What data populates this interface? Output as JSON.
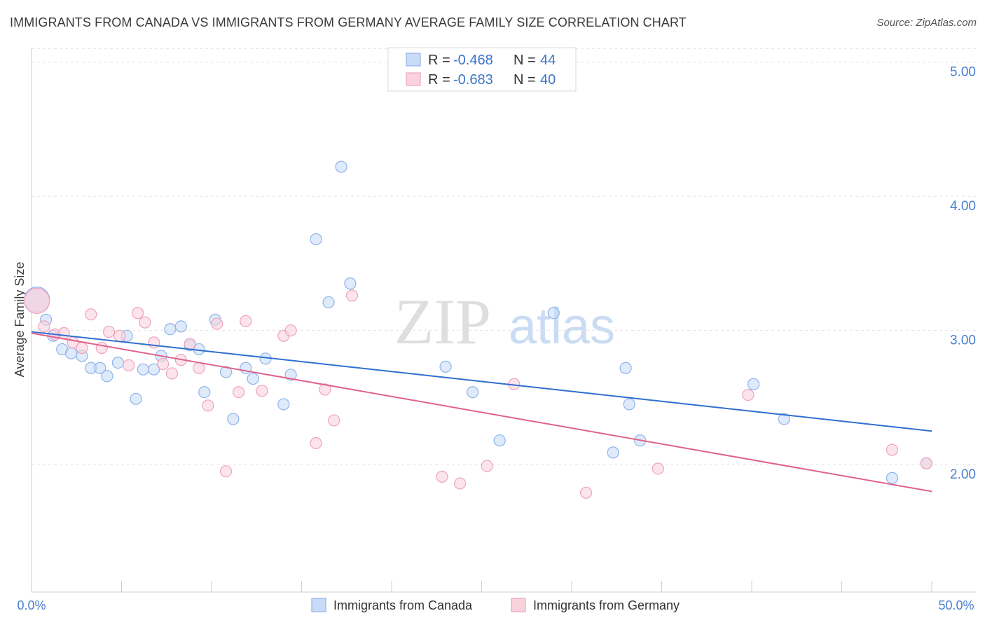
{
  "title": "IMMIGRANTS FROM CANADA VS IMMIGRANTS FROM GERMANY AVERAGE FAMILY SIZE CORRELATION CHART",
  "source": "Source: ZipAtlas.com",
  "watermark": {
    "zip": "ZIP",
    "atlas": "atlas"
  },
  "chart_data": {
    "type": "scatter",
    "title": "IMMIGRANTS FROM CANADA VS IMMIGRANTS FROM GERMANY AVERAGE FAMILY SIZE CORRELATION CHART",
    "xlabel": "",
    "ylabel": "Average Family Size",
    "xlim": [
      0,
      50
    ],
    "ylim": [
      1.05,
      5.15
    ],
    "x_tick_labels": {
      "left": "0.0%",
      "right": "50.0%"
    },
    "y_ticks": [
      {
        "value": 2.0,
        "label": "2.00"
      },
      {
        "value": 3.0,
        "label": "3.00"
      },
      {
        "value": 4.0,
        "label": "4.00"
      },
      {
        "value": 5.0,
        "label": "5.00"
      }
    ],
    "grid": true,
    "legend": [
      {
        "r_label": "R =",
        "r_value": "-0.468",
        "n_label": "N =",
        "n_value": "44"
      },
      {
        "r_label": "R =",
        "r_value": "-0.683",
        "n_label": "N =",
        "n_value": "40"
      }
    ],
    "series": [
      {
        "name": "Immigrants from Canada",
        "color": "#8fb4ea",
        "fill": "#c9dcf7",
        "line_color": "#2f6fcf",
        "trend": {
          "x0": 0,
          "y0": 2.99,
          "x1": 50,
          "y1": 2.25
        },
        "points": [
          [
            0.3,
            3.23
          ],
          [
            0.8,
            3.08
          ],
          [
            1.2,
            2.96
          ],
          [
            1.7,
            2.86
          ],
          [
            2.2,
            2.83
          ],
          [
            2.8,
            2.81
          ],
          [
            3.3,
            2.72
          ],
          [
            3.8,
            2.72
          ],
          [
            4.2,
            2.66
          ],
          [
            4.8,
            2.76
          ],
          [
            5.3,
            2.96
          ],
          [
            5.8,
            2.49
          ],
          [
            6.2,
            2.71
          ],
          [
            6.8,
            2.71
          ],
          [
            7.2,
            2.81
          ],
          [
            7.7,
            3.01
          ],
          [
            8.3,
            3.03
          ],
          [
            8.8,
            2.89
          ],
          [
            9.3,
            2.86
          ],
          [
            9.6,
            2.54
          ],
          [
            10.2,
            3.08
          ],
          [
            10.8,
            2.69
          ],
          [
            11.2,
            2.34
          ],
          [
            11.9,
            2.72
          ],
          [
            12.3,
            2.64
          ],
          [
            13.0,
            2.79
          ],
          [
            14.0,
            2.45
          ],
          [
            14.4,
            2.67
          ],
          [
            15.8,
            3.68
          ],
          [
            16.5,
            3.21
          ],
          [
            17.2,
            4.22
          ],
          [
            17.7,
            3.35
          ],
          [
            23.0,
            2.73
          ],
          [
            24.5,
            2.54
          ],
          [
            26.0,
            2.18
          ],
          [
            29.0,
            3.13
          ],
          [
            32.3,
            2.09
          ],
          [
            33.0,
            2.72
          ],
          [
            33.2,
            2.45
          ],
          [
            33.8,
            2.18
          ],
          [
            40.1,
            2.6
          ],
          [
            41.8,
            2.34
          ],
          [
            47.8,
            1.9
          ],
          [
            49.7,
            2.01
          ]
        ]
      },
      {
        "name": "Immigrants from Germany",
        "color": "#f0a3bc",
        "fill": "#f9d2de",
        "line_color": "#e0628d",
        "trend": {
          "x0": 0,
          "y0": 2.98,
          "x1": 50,
          "y1": 1.8
        },
        "points": [
          [
            0.3,
            3.22
          ],
          [
            0.7,
            3.03
          ],
          [
            1.3,
            2.97
          ],
          [
            1.8,
            2.98
          ],
          [
            2.3,
            2.91
          ],
          [
            2.8,
            2.87
          ],
          [
            3.3,
            3.12
          ],
          [
            3.9,
            2.87
          ],
          [
            4.3,
            2.99
          ],
          [
            4.9,
            2.96
          ],
          [
            5.4,
            2.74
          ],
          [
            5.9,
            3.13
          ],
          [
            6.3,
            3.06
          ],
          [
            6.8,
            2.91
          ],
          [
            7.3,
            2.75
          ],
          [
            7.8,
            2.68
          ],
          [
            8.3,
            2.78
          ],
          [
            8.8,
            2.9
          ],
          [
            9.3,
            2.72
          ],
          [
            9.8,
            2.44
          ],
          [
            10.3,
            3.05
          ],
          [
            10.8,
            1.95
          ],
          [
            11.5,
            2.54
          ],
          [
            11.9,
            3.07
          ],
          [
            12.8,
            2.55
          ],
          [
            14.0,
            2.96
          ],
          [
            14.4,
            3.0
          ],
          [
            15.8,
            2.16
          ],
          [
            16.3,
            2.56
          ],
          [
            16.8,
            2.33
          ],
          [
            17.8,
            3.26
          ],
          [
            22.8,
            1.91
          ],
          [
            23.8,
            1.86
          ],
          [
            25.3,
            1.99
          ],
          [
            26.8,
            2.6
          ],
          [
            30.8,
            1.79
          ],
          [
            34.8,
            1.97
          ],
          [
            39.8,
            2.52
          ],
          [
            47.8,
            2.11
          ],
          [
            49.7,
            2.01
          ]
        ]
      }
    ]
  }
}
